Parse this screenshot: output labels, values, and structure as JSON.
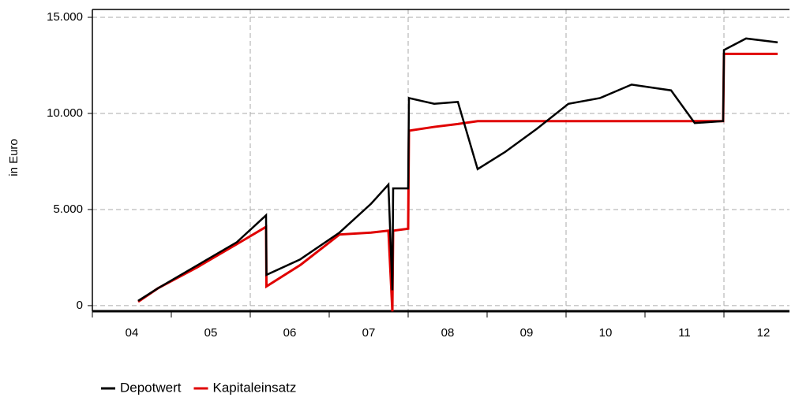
{
  "chart_data": {
    "type": "line",
    "y_label": "in Euro",
    "x": [
      2004.58,
      2004.83,
      2005.33,
      2005.83,
      2006.2,
      2006.205,
      2006.63,
      2007.13,
      2007.53,
      2007.75,
      2007.8,
      2007.81,
      2008.0,
      2008.01,
      2008.33,
      2008.63,
      2008.88,
      2009.23,
      2009.63,
      2010.03,
      2010.43,
      2010.83,
      2011.33,
      2011.63,
      2011.99,
      2012.0,
      2012.28,
      2012.68
    ],
    "series": [
      {
        "name": "Depotwert",
        "color": "#000000",
        "values": [
          250,
          900,
          2100,
          3300,
          4700,
          1600,
          2400,
          3800,
          5300,
          6300,
          800,
          6100,
          6100,
          10800,
          10500,
          10600,
          7100,
          8000,
          9200,
          10500,
          10800,
          11500,
          11200,
          9500,
          9600,
          13300,
          13900,
          13700
        ]
      },
      {
        "name": "Kapitaleinsatz",
        "color": "#e00000",
        "values": [
          200,
          900,
          2000,
          3200,
          4100,
          1000,
          2100,
          3700,
          3800,
          3900,
          -300,
          3900,
          4000,
          9100,
          9300,
          9450,
          9600,
          9600,
          9600,
          9600,
          9600,
          9600,
          9600,
          9600,
          9600,
          13100,
          13100,
          13100
        ]
      }
    ],
    "xlim": [
      2004,
      2012.83
    ],
    "xticks": [
      {
        "value": 2004.5,
        "label": "04"
      },
      {
        "value": 2005.5,
        "label": "05"
      },
      {
        "value": 2006.5,
        "label": "06"
      },
      {
        "value": 2007.5,
        "label": "07"
      },
      {
        "value": 2008.5,
        "label": "08"
      },
      {
        "value": 2009.5,
        "label": "09"
      },
      {
        "value": 2010.5,
        "label": "10"
      },
      {
        "value": 2011.5,
        "label": "11"
      },
      {
        "value": 2012.5,
        "label": "12"
      }
    ],
    "xgrid": [
      2006,
      2008,
      2010,
      2012
    ],
    "xminor": [
      2004,
      2005,
      2006,
      2007,
      2008,
      2009,
      2010,
      2011,
      2012
    ],
    "ylim": [
      -290,
      15410
    ],
    "yticks": [
      0,
      {
        "value": 5000,
        "label": "5.000"
      },
      {
        "value": 10000,
        "label": "10.000"
      },
      {
        "value": 15000,
        "label": "15.000"
      }
    ],
    "grid": true,
    "legend": "bottom"
  }
}
